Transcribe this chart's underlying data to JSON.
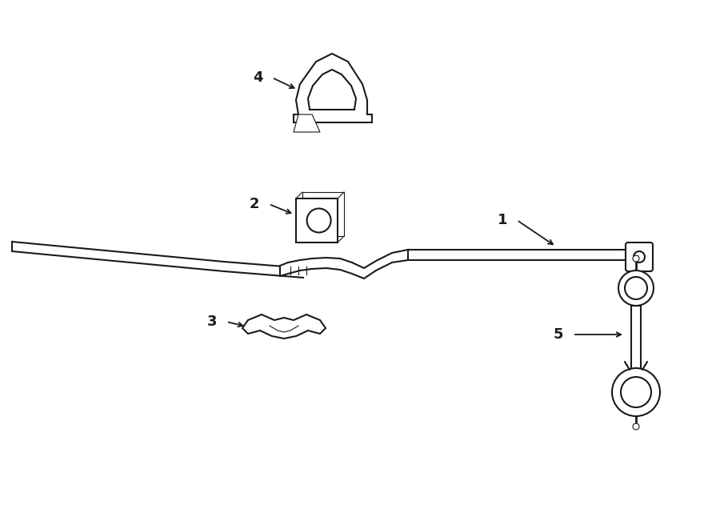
{
  "background_color": "#ffffff",
  "line_color": "#1a1a1a",
  "line_width": 1.5,
  "thin_line": 0.8,
  "label_fontsize": 13
}
